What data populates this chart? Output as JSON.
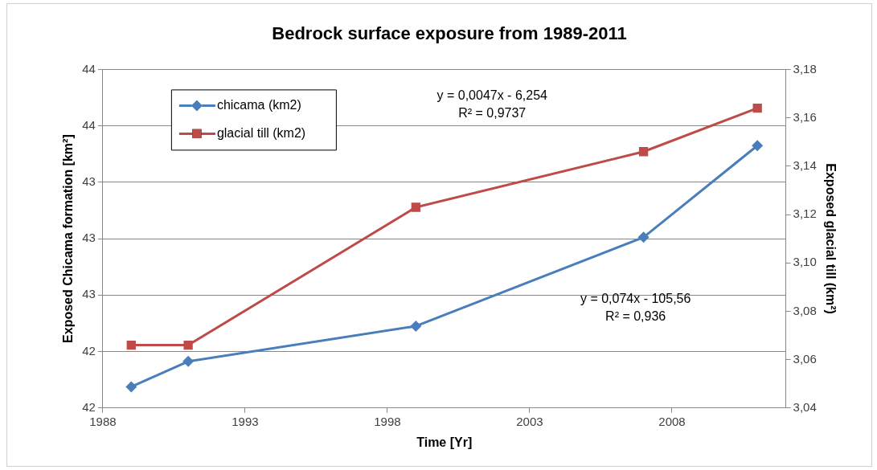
{
  "chart_data": {
    "type": "line",
    "title": "Bedrock surface exposure from 1989-2011",
    "xlabel": "Time [Yr]",
    "ylabel": "Exposed Chicama formation [km²]",
    "y2label": "Exposed glacial till (km²)",
    "x": [
      1989,
      1991,
      1999,
      2007,
      2011
    ],
    "series": [
      {
        "name": "chicama (km2)",
        "color": "#4a7ebb",
        "marker": "diamond",
        "values": [
          41.95,
          42.13,
          42.38,
          43.01,
          43.66
        ]
      },
      {
        "name": "glacial till (km2)",
        "color": "#be4b48",
        "marker": "square",
        "axis": "y2",
        "values": [
          3.066,
          3.066,
          3.123,
          3.146,
          3.164
        ]
      }
    ],
    "xlim": [
      1988,
      2012
    ],
    "xticks": [
      1988,
      1993,
      1998,
      2003,
      2008
    ],
    "ylim": [
      41.8,
      44.2
    ],
    "yticks": [
      {
        "value": 41.8,
        "label": "42"
      },
      {
        "value": 42.2,
        "label": "42"
      },
      {
        "value": 42.6,
        "label": "43"
      },
      {
        "value": 43.0,
        "label": "43"
      },
      {
        "value": 43.4,
        "label": "43"
      },
      {
        "value": 43.8,
        "label": "44"
      },
      {
        "value": 44.2,
        "label": "44"
      }
    ],
    "y2lim": [
      3.04,
      3.18
    ],
    "y2ticks": [
      {
        "value": 3.04,
        "label": "3,04"
      },
      {
        "value": 3.06,
        "label": "3,06"
      },
      {
        "value": 3.08,
        "label": "3,08"
      },
      {
        "value": 3.1,
        "label": "3,10"
      },
      {
        "value": 3.12,
        "label": "3,12"
      },
      {
        "value": 3.14,
        "label": "3,14"
      },
      {
        "value": 3.16,
        "label": "3,16"
      },
      {
        "value": 3.18,
        "label": "3,18"
      }
    ],
    "grid": "y",
    "legend": "top left",
    "line_style": "solid",
    "annotations": [
      "y = 0,0047x - 6,254\nR² = 0,9737",
      "y = 0,074x - 105,56\nR² = 0,936"
    ]
  }
}
